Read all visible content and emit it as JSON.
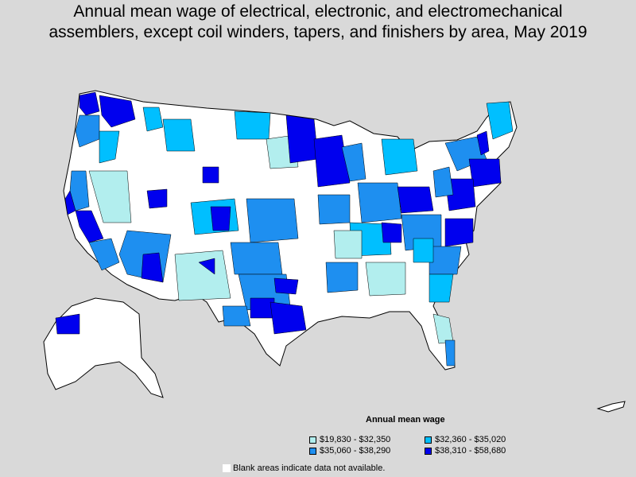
{
  "title": {
    "line1": "Annual mean wage of electrical, electronic, and electromechanical",
    "line2": "assemblers, except coil winders, tapers, and finishers by area, May 2019"
  },
  "legend": {
    "title": "Annual mean wage",
    "items": [
      {
        "label": "$19,830 - $32,350",
        "color": "#b2eeee"
      },
      {
        "label": "$32,360 - $35,020",
        "color": "#00bfff"
      },
      {
        "label": "$35,060 - $38,290",
        "color": "#1e8ff0"
      },
      {
        "label": "$38,310 - $58,680",
        "color": "#0000ee"
      }
    ]
  },
  "note": "Blank areas indicate data not available.",
  "colors": {
    "background": "#d9d9d9",
    "blank": "#ffffff",
    "border": "#000000"
  }
}
